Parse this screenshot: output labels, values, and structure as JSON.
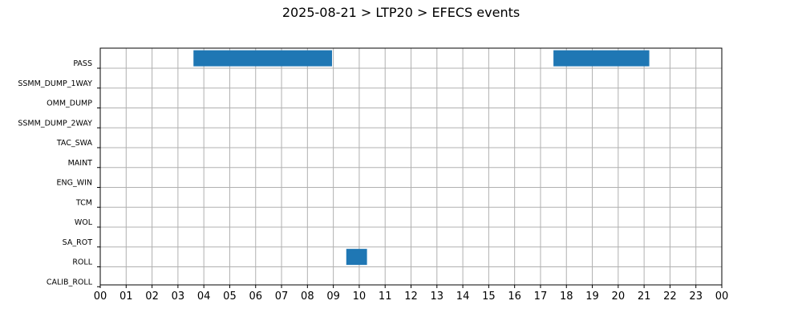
{
  "chart_data": {
    "type": "bar",
    "orientation": "horizontal-gantt",
    "title": "2025-08-21 > LTP20 > EFECS events",
    "xlabel": "",
    "ylabel": "",
    "xlim": [
      0,
      24
    ],
    "x_tick_labels": [
      "00",
      "01",
      "02",
      "03",
      "04",
      "05",
      "06",
      "07",
      "08",
      "09",
      "10",
      "11",
      "12",
      "13",
      "14",
      "15",
      "16",
      "17",
      "18",
      "19",
      "20",
      "21",
      "22",
      "23",
      "00"
    ],
    "categories": [
      "PASS",
      "SSMM_DUMP_1WAY",
      "OMM_DUMP",
      "SSMM_DUMP_2WAY",
      "TAC_SWA",
      "MAINT",
      "ENG_WIN",
      "TCM",
      "WOL",
      "SA_ROT",
      "ROLL",
      "CALIB_ROLL"
    ],
    "events": [
      {
        "category": "PASS",
        "start": 3.6,
        "end": 8.95
      },
      {
        "category": "PASS",
        "start": 17.5,
        "end": 21.2
      },
      {
        "category": "ROLL",
        "start": 9.5,
        "end": 10.3
      }
    ],
    "grid": true,
    "bar_color": "#1f77b4",
    "grid_color": "#b0b0b0"
  }
}
